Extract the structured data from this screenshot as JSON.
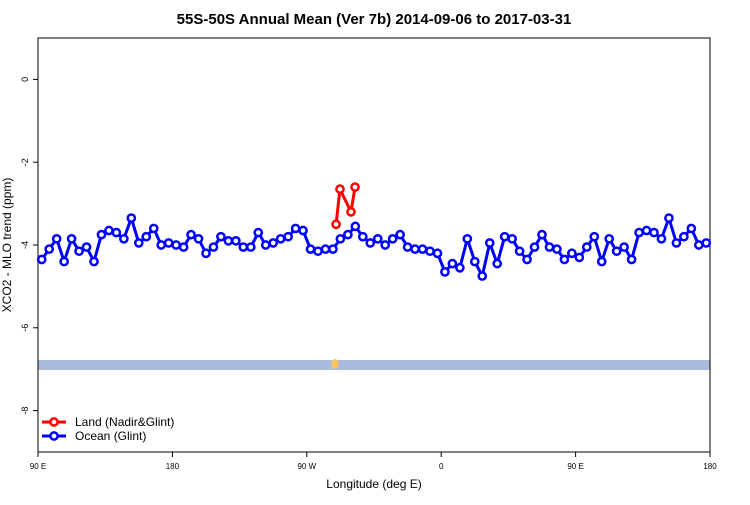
{
  "chart_data": {
    "type": "line",
    "title": "55S-50S Annual Mean (Ver 7b)   2014-09-06 to 2017-03-31",
    "xlabel": "Longitude (deg E)",
    "ylabel": "XCO2 - MLO trend (ppm)",
    "xlim": [
      90,
      540
    ],
    "xticks": [
      {
        "value": 90,
        "label": "90 E"
      },
      {
        "value": 180,
        "label": "180"
      },
      {
        "value": 270,
        "label": "90 W"
      },
      {
        "value": 360,
        "label": "0"
      },
      {
        "value": 450,
        "label": "90 E"
      },
      {
        "value": 540,
        "label": "180"
      }
    ],
    "ylim": [
      -9,
      1
    ],
    "yticks": [
      0,
      -2,
      -4,
      -6,
      -8
    ],
    "legend": "bottom-left",
    "series": [
      {
        "name": "Land (Nadir&Glint)",
        "color": "#ff0000",
        "x": [
          289.6,
          292.2,
          299.6,
          302.3
        ],
        "values": [
          -3.5,
          -2.65,
          -3.2,
          -2.6
        ]
      },
      {
        "name": "Ocean (Glint)",
        "color": "#0000ff",
        "x": [
          92.5,
          97.5,
          102.5,
          107.5,
          112.5,
          117.5,
          122.5,
          127.5,
          132.5,
          137.5,
          142.5,
          147.5,
          152.5,
          157.5,
          162.5,
          167.5,
          172.5,
          177.5,
          182.5,
          187.5,
          192.5,
          197.5,
          202.5,
          207.5,
          212.5,
          217.5,
          222.5,
          227.5,
          232.5,
          237.5,
          242.5,
          247.5,
          252.5,
          257.5,
          262.5,
          267.5,
          272.5,
          277.5,
          282.5,
          287.5,
          292.5,
          297.5,
          302.5,
          307.5,
          312.5,
          317.5,
          322.5,
          327.5,
          332.5,
          337.5,
          342.5,
          347.5,
          352.5,
          357.5,
          362.5,
          367.5,
          372.5,
          377.5,
          382.5,
          387.5,
          392.5,
          397.5,
          402.5,
          407.5,
          412.5,
          417.5,
          422.5,
          427.5,
          432.5,
          437.5,
          442.5,
          447.5,
          452.5,
          457.5,
          462.5,
          467.5,
          472.5,
          477.5,
          482.5,
          487.5,
          492.5,
          497.5,
          502.5,
          507.5,
          512.5,
          517.5,
          522.5,
          527.5,
          532.5,
          537.5
        ],
        "values": [
          -4.35,
          -4.1,
          -3.85,
          -4.4,
          -3.85,
          -4.15,
          -4.05,
          -4.4,
          -3.75,
          -3.65,
          -3.7,
          -3.85,
          -3.35,
          -3.95,
          -3.8,
          -3.6,
          -4.0,
          -3.95,
          -4.0,
          -4.05,
          -3.75,
          -3.85,
          -4.2,
          -4.05,
          -3.8,
          -3.9,
          -3.9,
          -4.05,
          -4.05,
          -3.7,
          -4.0,
          -3.95,
          -3.85,
          -3.8,
          -3.6,
          -3.65,
          -4.1,
          -4.15,
          -4.1,
          -4.1,
          -3.85,
          -3.75,
          -3.55,
          -3.8,
          -3.95,
          -3.85,
          -4.0,
          -3.85,
          -3.75,
          -4.05,
          -4.1,
          -4.1,
          -4.15,
          -4.2,
          -4.65,
          -4.45,
          -4.55,
          -3.85,
          -4.4,
          -4.75,
          -3.95,
          -4.45,
          -3.8,
          -3.85,
          -4.15,
          -4.35,
          -4.05,
          -3.75,
          -4.05,
          -4.1,
          -4.35,
          -4.2,
          -4.3,
          -4.05,
          -3.8,
          -4.4,
          -3.85,
          -4.15,
          -4.05,
          -4.35,
          -3.7,
          -3.65,
          -3.7,
          -3.85,
          -3.35,
          -3.95,
          -3.8,
          -3.6,
          -4.0,
          -3.95
        ]
      }
    ]
  }
}
